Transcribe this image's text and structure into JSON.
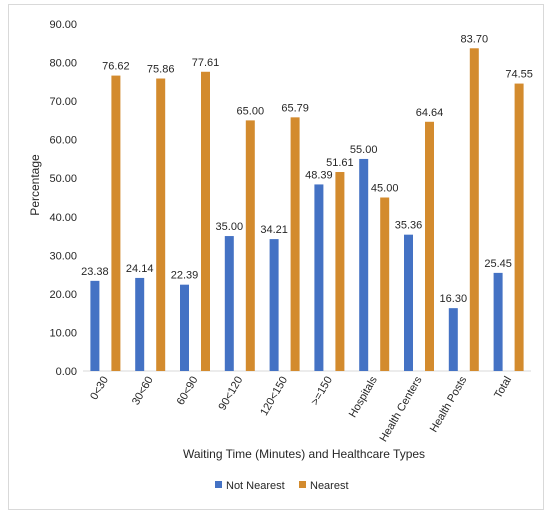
{
  "chart_data": {
    "type": "bar",
    "xlabel": "Waiting Time (Minutes) and Healthcare Types",
    "ylabel": "Percentage",
    "ylim": [
      0,
      90
    ],
    "yticks": [
      "0.00",
      "10.00",
      "20.00",
      "30.00",
      "40.00",
      "50.00",
      "60.00",
      "70.00",
      "80.00",
      "90.00"
    ],
    "ytick_values": [
      0,
      10,
      20,
      30,
      40,
      50,
      60,
      70,
      80,
      90
    ],
    "grid": false,
    "legend_position": "bottom",
    "categories": [
      "0<30",
      "30<60",
      "60<90",
      "90<120",
      "120<150",
      ">=150",
      "Hospitals",
      "Health Centers",
      "Health Posts",
      "Total"
    ],
    "series": [
      {
        "name": "Not Nearest",
        "color": "#4472C4",
        "values": [
          23.38,
          24.14,
          22.39,
          35.0,
          34.21,
          48.39,
          55.0,
          35.36,
          16.3,
          25.45
        ],
        "labels": [
          "23.38",
          "24.14",
          "22.39",
          "35.00",
          "34.21",
          "48.39",
          "55.00",
          "35.36",
          "16.30",
          "25.45"
        ]
      },
      {
        "name": "Nearest",
        "color": "#D38B2E",
        "values": [
          76.62,
          75.86,
          77.61,
          65.0,
          65.79,
          51.61,
          45.0,
          64.64,
          83.7,
          74.55
        ],
        "labels": [
          "76.62",
          "75.86",
          "77.61",
          "65.00",
          "65.79",
          "51.61",
          "45.00",
          "64.64",
          "83.70",
          "74.55"
        ]
      }
    ]
  }
}
